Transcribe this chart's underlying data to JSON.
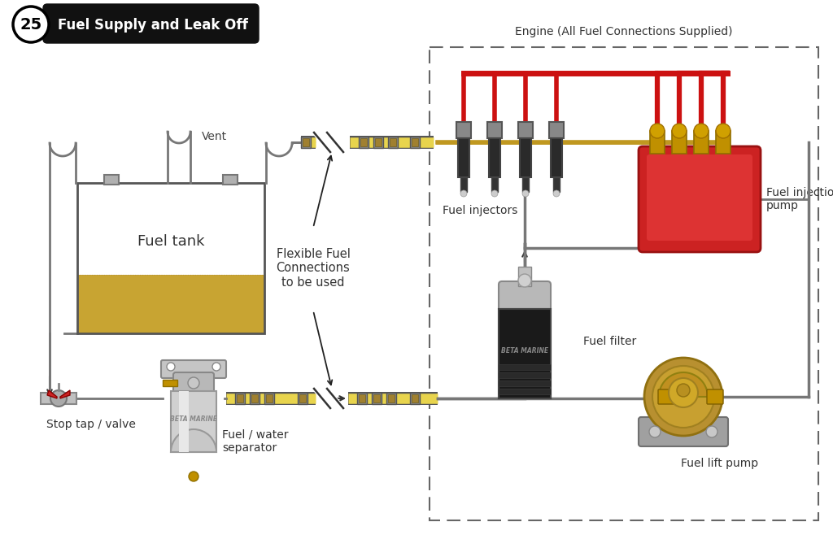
{
  "title": "Fuel Supply and Leak Off",
  "title_number": "25",
  "engine_box_label": "Engine (All Fuel Connections Supplied)",
  "background_color": "#ffffff",
  "fuel_tank_label": "Fuel tank",
  "vent_label": "Vent",
  "stop_tap_label": "Stop tap / valve",
  "fuel_water_sep_label": "Fuel / water\nseparator",
  "flex_fuel_label": "Flexible Fuel\nConnections\nto be used",
  "fuel_injectors_label": "Fuel injectors",
  "fuel_injection_pump_label": "Fuel injection\npump",
  "fuel_filter_label": "Fuel filter",
  "fuel_lift_pump_label": "Fuel lift pump",
  "pipe_gray": "#888888",
  "pipe_outline": "#555555",
  "yellow_pipe": "#e8d44d",
  "red_pipe": "#cc1111",
  "gold": "#c09820",
  "tank_fuel": "#c8a432",
  "brass": "#b89030"
}
